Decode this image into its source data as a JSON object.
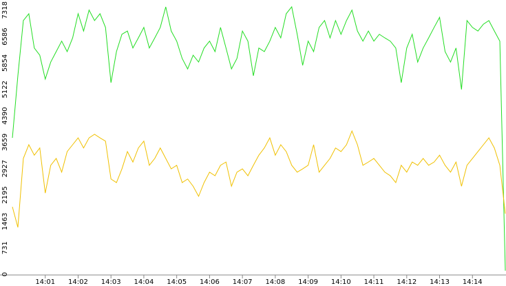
{
  "chart_data": {
    "type": "line",
    "categories": [
      null,
      null,
      null,
      null,
      null,
      null,
      "14:01",
      null,
      null,
      null,
      null,
      null,
      "14:02",
      null,
      null,
      null,
      null,
      null,
      "14:03",
      null,
      null,
      null,
      null,
      null,
      "14:04",
      null,
      null,
      null,
      null,
      null,
      "14:05",
      null,
      null,
      null,
      null,
      null,
      "14:06",
      null,
      null,
      null,
      null,
      null,
      "14:07",
      null,
      null,
      null,
      null,
      null,
      "14:08",
      null,
      null,
      null,
      null,
      null,
      "14:09",
      null,
      null,
      null,
      null,
      null,
      "14:10",
      null,
      null,
      null,
      null,
      null,
      "14:11",
      null,
      null,
      null,
      null,
      null,
      "14:12",
      null,
      null,
      null,
      null,
      null,
      "14:13",
      null,
      null,
      null,
      null,
      null,
      "14:14",
      null,
      null,
      null,
      null,
      null,
      null
    ],
    "series": [
      {
        "color": "#22dd22",
        "values": [
          3780,
          5500,
          7030,
          7220,
          6270,
          6070,
          5410,
          5880,
          6170,
          6460,
          6170,
          6550,
          7220,
          6740,
          7320,
          7030,
          7220,
          6840,
          5310,
          6170,
          6650,
          6740,
          6270,
          6550,
          6840,
          6270,
          6550,
          6840,
          7410,
          6740,
          6460,
          5980,
          5690,
          6070,
          5880,
          6270,
          6460,
          6170,
          6840,
          6270,
          5690,
          5980,
          6740,
          6460,
          5500,
          6270,
          6170,
          6460,
          6840,
          6550,
          7220,
          7410,
          6650,
          5790,
          6460,
          6170,
          6840,
          7030,
          6550,
          7030,
          6650,
          7030,
          7320,
          6740,
          6460,
          6740,
          6460,
          6650,
          6550,
          6460,
          6270,
          5310,
          6270,
          6650,
          5880,
          6270,
          6550,
          6840,
          7120,
          6170,
          5880,
          6270,
          5120,
          7030,
          6840,
          6740,
          6930,
          7030,
          6740,
          6460,
          100
        ]
      },
      {
        "color": "#f0c000",
        "values": [
          1870,
          1300,
          3210,
          3590,
          3300,
          3500,
          2250,
          3020,
          3210,
          2830,
          3400,
          3590,
          3780,
          3500,
          3780,
          3880,
          3780,
          3690,
          2640,
          2540,
          2920,
          3400,
          3110,
          3500,
          3690,
          3020,
          3210,
          3500,
          3210,
          2920,
          3020,
          2540,
          2640,
          2440,
          2160,
          2540,
          2830,
          2730,
          3020,
          3110,
          2440,
          2830,
          2920,
          2730,
          3020,
          3300,
          3500,
          3780,
          3300,
          3590,
          3400,
          3020,
          2830,
          2920,
          3020,
          3590,
          2830,
          3020,
          3210,
          3500,
          3400,
          3590,
          3970,
          3590,
          3020,
          3110,
          3210,
          3020,
          2830,
          2730,
          2540,
          3020,
          2830,
          3110,
          3020,
          3210,
          3020,
          3110,
          3300,
          3020,
          2830,
          3110,
          2440,
          3020,
          3210,
          3400,
          3590,
          3780,
          3500,
          3020,
          1680
        ]
      }
    ],
    "ylim": [
      0,
      7600
    ],
    "yticks": [
      0,
      731,
      1463,
      2195,
      2927,
      3659,
      4390,
      5122,
      5854,
      6586,
      7318
    ],
    "grid": false
  }
}
